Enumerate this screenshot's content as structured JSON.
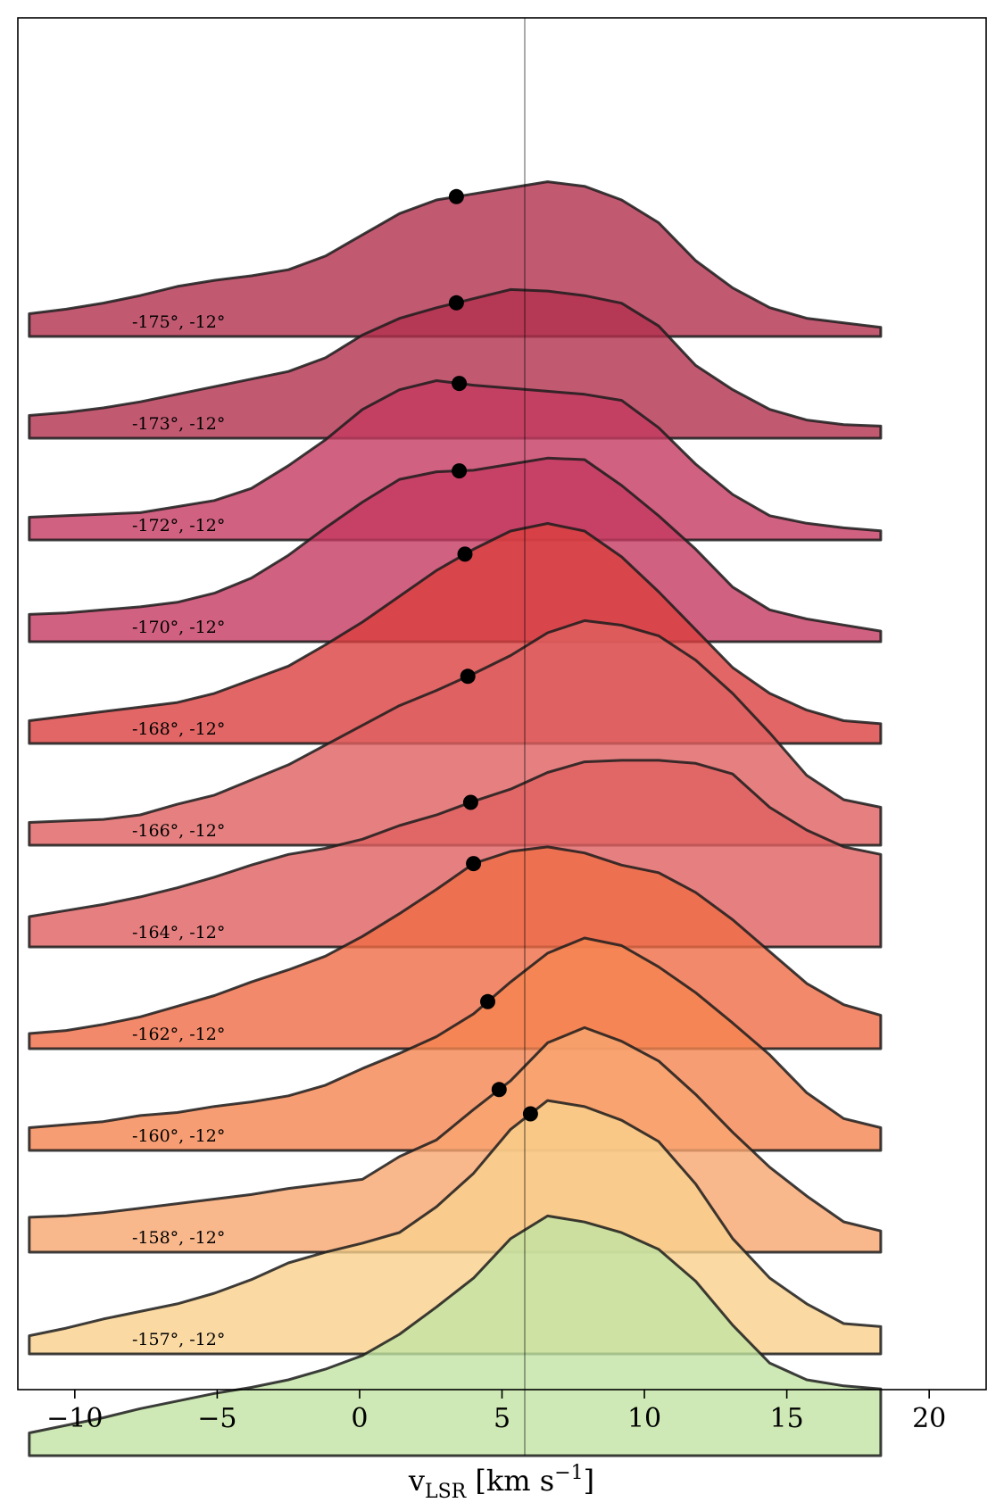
{
  "chart_data": {
    "type": "area",
    "title": "",
    "xlabel": {
      "base": "v",
      "sub": "LSR",
      "unit_prefix": " [km s",
      "unit_sup": "−1",
      "unit_suffix": "]"
    },
    "ylabel": "",
    "xlim": [
      -12,
      22
    ],
    "xticks": [
      -10,
      -5,
      0,
      5,
      10,
      15,
      20
    ],
    "xtick_labels": [
      "−10",
      "−5",
      "0",
      "5",
      "10",
      "15",
      "20"
    ],
    "yticks": [],
    "grid": false,
    "legend": "none",
    "reference_line_x": 5.8,
    "x": [
      -11.6,
      -10.3,
      -9.0,
      -7.7,
      -6.4,
      -5.1,
      -3.8,
      -2.5,
      -1.2,
      0.1,
      1.4,
      2.7,
      4.0,
      5.3,
      6.6,
      7.9,
      9.2,
      10.5,
      11.8,
      13.1,
      14.4,
      15.7,
      17.0,
      18.3
    ],
    "series": [
      {
        "label": "-175°, -12°",
        "color": "#b2304e",
        "peak_velocity": 3.4,
        "values": [
          0.15,
          0.18,
          0.22,
          0.27,
          0.33,
          0.37,
          0.4,
          0.44,
          0.53,
          0.67,
          0.81,
          0.9,
          0.94,
          0.98,
          1.02,
          0.99,
          0.9,
          0.75,
          0.5,
          0.32,
          0.19,
          0.12,
          0.09,
          0.06
        ]
      },
      {
        "label": "-173°, -12°",
        "color": "#b2304e",
        "peak_velocity": 3.4,
        "values": [
          0.15,
          0.17,
          0.2,
          0.24,
          0.29,
          0.34,
          0.39,
          0.44,
          0.53,
          0.68,
          0.79,
          0.86,
          0.92,
          0.98,
          0.97,
          0.94,
          0.89,
          0.74,
          0.48,
          0.32,
          0.19,
          0.12,
          0.09,
          0.08
        ]
      },
      {
        "label": "-172°, -12°",
        "color": "#c43a60",
        "peak_velocity": 3.5,
        "values": [
          0.15,
          0.16,
          0.17,
          0.18,
          0.22,
          0.26,
          0.34,
          0.49,
          0.66,
          0.86,
          0.99,
          1.05,
          1.02,
          1.0,
          0.98,
          0.96,
          0.92,
          0.74,
          0.5,
          0.3,
          0.16,
          0.11,
          0.08,
          0.06
        ]
      },
      {
        "label": "-170°, -12°",
        "color": "#c43a60",
        "peak_velocity": 3.5,
        "values": [
          0.18,
          0.19,
          0.21,
          0.23,
          0.26,
          0.32,
          0.42,
          0.57,
          0.75,
          0.92,
          1.07,
          1.12,
          1.13,
          1.17,
          1.21,
          1.2,
          1.03,
          0.83,
          0.61,
          0.36,
          0.21,
          0.15,
          0.11,
          0.07
        ]
      },
      {
        "label": "-168°, -12°",
        "color": "#d9403f",
        "peak_velocity": 3.7,
        "values": [
          0.15,
          0.18,
          0.21,
          0.24,
          0.27,
          0.33,
          0.42,
          0.51,
          0.65,
          0.8,
          0.97,
          1.14,
          1.28,
          1.4,
          1.45,
          1.4,
          1.23,
          1.0,
          0.75,
          0.5,
          0.33,
          0.22,
          0.15,
          0.13
        ]
      },
      {
        "label": "-166°, -12°",
        "color": "#e06060",
        "peak_velocity": 3.8,
        "values": [
          0.15,
          0.16,
          0.17,
          0.2,
          0.27,
          0.33,
          0.43,
          0.53,
          0.66,
          0.79,
          0.92,
          1.02,
          1.13,
          1.25,
          1.4,
          1.48,
          1.45,
          1.38,
          1.22,
          1.0,
          0.74,
          0.46,
          0.3,
          0.25
        ]
      },
      {
        "label": "-164°, -12°",
        "color": "#e06060",
        "peak_velocity": 3.9,
        "values": [
          0.2,
          0.24,
          0.28,
          0.33,
          0.39,
          0.46,
          0.54,
          0.61,
          0.65,
          0.71,
          0.8,
          0.87,
          0.96,
          1.04,
          1.15,
          1.22,
          1.23,
          1.23,
          1.21,
          1.14,
          0.92,
          0.77,
          0.66,
          0.61
        ]
      },
      {
        "label": "-162°, -12°",
        "color": "#ef6b45",
        "peak_velocity": 4.0,
        "values": [
          0.1,
          0.12,
          0.16,
          0.21,
          0.28,
          0.35,
          0.44,
          0.52,
          0.61,
          0.74,
          0.89,
          1.05,
          1.22,
          1.3,
          1.33,
          1.29,
          1.21,
          1.16,
          1.03,
          0.85,
          0.64,
          0.43,
          0.29,
          0.22
        ]
      },
      {
        "label": "-160°, -12°",
        "color": "#f58450",
        "peak_velocity": 4.5,
        "values": [
          0.15,
          0.17,
          0.19,
          0.23,
          0.25,
          0.29,
          0.32,
          0.36,
          0.43,
          0.54,
          0.64,
          0.75,
          0.9,
          1.11,
          1.3,
          1.4,
          1.35,
          1.21,
          1.04,
          0.84,
          0.63,
          0.38,
          0.21,
          0.15
        ]
      },
      {
        "label": "-158°, -12°",
        "color": "#f8a56f",
        "peak_velocity": 4.9,
        "values": [
          0.23,
          0.24,
          0.26,
          0.29,
          0.32,
          0.35,
          0.38,
          0.42,
          0.45,
          0.48,
          0.63,
          0.74,
          0.94,
          1.13,
          1.38,
          1.48,
          1.39,
          1.26,
          1.04,
          0.79,
          0.56,
          0.37,
          0.2,
          0.14
        ]
      },
      {
        "label": "-157°, -12°",
        "color": "#f9d08c",
        "peak_velocity": 6.0,
        "values": [
          0.12,
          0.17,
          0.23,
          0.28,
          0.33,
          0.4,
          0.49,
          0.6,
          0.67,
          0.73,
          0.8,
          0.97,
          1.19,
          1.48,
          1.67,
          1.63,
          1.54,
          1.4,
          1.12,
          0.76,
          0.5,
          0.33,
          0.2,
          0.18
        ]
      },
      {
        "label": "",
        "color": "#c2e3a3",
        "peak_velocity": null,
        "values": [
          0.15,
          0.2,
          0.25,
          0.31,
          0.36,
          0.41,
          0.45,
          0.5,
          0.57,
          0.66,
          0.8,
          0.98,
          1.17,
          1.43,
          1.58,
          1.54,
          1.47,
          1.36,
          1.15,
          0.86,
          0.61,
          0.5,
          0.46,
          0.44
        ]
      }
    ]
  }
}
